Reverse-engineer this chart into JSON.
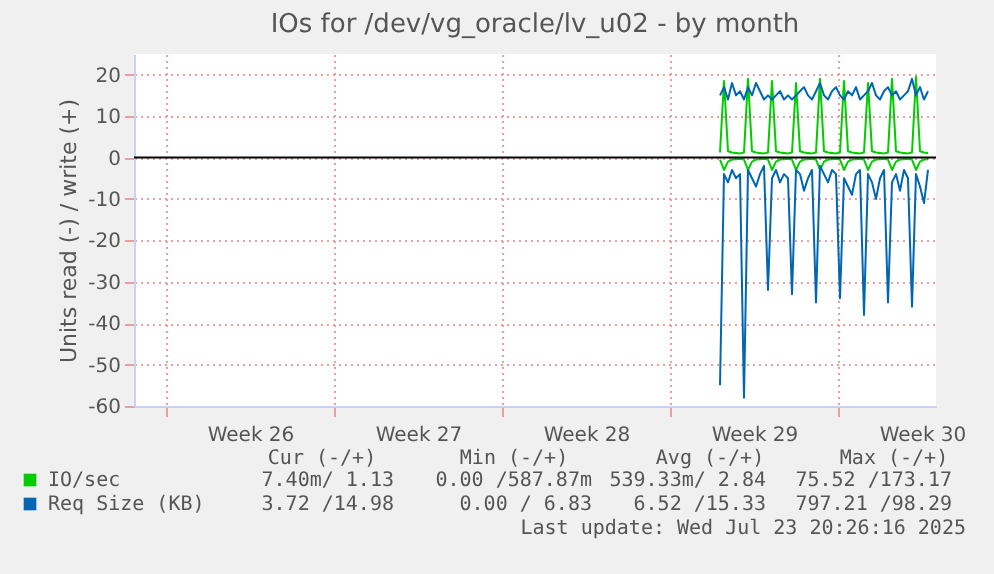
{
  "chart_data": {
    "type": "line",
    "title": "IOs for /dev/vg_oracle/lv_u02 - by month",
    "ylabel": "Units read (-) / write (+)",
    "x": [
      "2025-07-15T00:00",
      "2025-07-15T04:00",
      "2025-07-15T08:00",
      "2025-07-15T12:00",
      "2025-07-15T16:00",
      "2025-07-15T20:00",
      "2025-07-16T00:00",
      "2025-07-16T04:00",
      "2025-07-16T08:00",
      "2025-07-16T12:00",
      "2025-07-16T16:00",
      "2025-07-16T20:00",
      "2025-07-17T00:00",
      "2025-07-17T04:00",
      "2025-07-17T08:00",
      "2025-07-17T12:00",
      "2025-07-17T16:00",
      "2025-07-17T20:00",
      "2025-07-18T00:00",
      "2025-07-18T04:00",
      "2025-07-18T08:00",
      "2025-07-18T12:00",
      "2025-07-18T16:00",
      "2025-07-18T20:00",
      "2025-07-19T00:00",
      "2025-07-19T04:00",
      "2025-07-19T08:00",
      "2025-07-19T12:00",
      "2025-07-19T16:00",
      "2025-07-19T20:00",
      "2025-07-20T00:00",
      "2025-07-20T04:00",
      "2025-07-20T08:00",
      "2025-07-20T12:00",
      "2025-07-20T16:00",
      "2025-07-20T20:00",
      "2025-07-21T00:00",
      "2025-07-21T04:00",
      "2025-07-21T08:00",
      "2025-07-21T12:00",
      "2025-07-21T16:00",
      "2025-07-21T20:00",
      "2025-07-22T00:00",
      "2025-07-22T04:00",
      "2025-07-22T08:00",
      "2025-07-22T12:00",
      "2025-07-22T16:00",
      "2025-07-22T20:00",
      "2025-07-23T00:00",
      "2025-07-23T04:00",
      "2025-07-23T08:00",
      "2025-07-23T12:00",
      "2025-07-23T16:00"
    ],
    "series": [
      {
        "name": "IO/sec",
        "color": "#00cc00",
        "values": [
          1.2,
          18.5,
          1.5,
          1.2,
          1.1,
          1.0,
          1.2,
          19,
          1.5,
          1.2,
          1.1,
          1.0,
          1.2,
          18.5,
          1.5,
          1.2,
          1.1,
          1.0,
          1.2,
          18,
          1.5,
          1.2,
          1.1,
          1.0,
          1.2,
          19,
          1.5,
          1.2,
          1.1,
          1.0,
          1.2,
          18.5,
          1.5,
          1.2,
          1.1,
          1.0,
          1.2,
          18,
          1.5,
          1.2,
          1.1,
          1.0,
          1.2,
          19,
          1.5,
          1.2,
          1.1,
          1.0,
          1.2,
          19.5,
          1.5,
          1.2,
          1.1
        ]
      },
      {
        "color": "#00cc00",
        "values": [
          -0.5,
          -3,
          -1,
          -0.5,
          -0.4,
          -0.3,
          -0.5,
          -3,
          -1,
          -0.5,
          -0.4,
          -0.3,
          -0.5,
          -3,
          -1,
          -0.5,
          -0.4,
          -0.3,
          -0.5,
          -3,
          -1,
          -0.5,
          -0.4,
          -0.3,
          -0.5,
          -3,
          -1,
          -0.5,
          -0.4,
          -0.3,
          -0.5,
          -3,
          -1,
          -0.5,
          -0.4,
          -0.3,
          -0.5,
          -3,
          -1,
          -0.5,
          -0.4,
          -0.3,
          -0.5,
          -3,
          -1,
          -0.5,
          -0.4,
          -0.3,
          -0.5,
          -3,
          -1,
          -0.5,
          -0.4
        ]
      },
      {
        "name": "Req Size (KB)",
        "color": "#0066b3",
        "values": [
          15,
          17,
          14,
          18,
          15,
          16,
          14,
          17,
          15,
          18,
          16,
          14,
          15,
          14,
          15,
          16,
          14,
          15,
          14,
          15,
          16,
          17,
          15,
          14,
          16,
          18,
          15,
          14,
          16,
          17,
          15,
          14,
          16,
          15,
          17,
          14,
          15,
          16,
          18,
          15,
          14,
          16,
          17,
          15,
          16,
          14,
          15,
          16,
          19,
          15,
          17,
          14,
          16
        ]
      },
      {
        "color": "#0066b3",
        "values": [
          -55,
          -4,
          -6,
          -3,
          -5,
          -4,
          -58,
          -3,
          -5,
          -7,
          -4,
          -2,
          -32,
          -5,
          -3,
          -6,
          -4,
          -5,
          -33,
          -3,
          -4,
          -8,
          -5,
          -3,
          -35,
          -2,
          -4,
          -6,
          -3,
          -4,
          -34,
          -5,
          -7,
          -9,
          -4,
          -3,
          -38,
          -4,
          -6,
          -10,
          -5,
          -3,
          -35,
          -6,
          -4,
          -8,
          -3,
          -5,
          -36,
          -4,
          -7,
          -11,
          -3
        ]
      }
    ],
    "xlim": [
      "2025-06-20T14:00",
      "2025-07-24T00:00"
    ],
    "xticks": [
      {
        "value": "2025-06-21T22:00",
        "label": null
      },
      {
        "value": "2025-06-25T10:00",
        "label": "Week 26"
      },
      {
        "value": "2025-06-28T22:00",
        "label": null
      },
      {
        "value": "2025-07-02T10:00",
        "label": "Week 27"
      },
      {
        "value": "2025-07-05T22:00",
        "label": null
      },
      {
        "value": "2025-07-09T10:00",
        "label": "Week 28"
      },
      {
        "value": "2025-07-12T22:00",
        "label": null
      },
      {
        "value": "2025-07-16T10:00",
        "label": "Week 29"
      },
      {
        "value": "2025-07-19T22:00",
        "label": null
      },
      {
        "value": "2025-07-23T10:00",
        "label": "Week 30"
      }
    ],
    "ylim": [
      -60,
      25
    ],
    "yticks": [
      -60,
      -50,
      -40,
      -30,
      -20,
      -10,
      0,
      10,
      20
    ],
    "ref_lines": [
      {
        "axis": "y",
        "value": 0,
        "color": "#000000"
      }
    ],
    "grid": true,
    "legend": "bottom",
    "annotations": [
      "Cur (-/+)",
      "Min (-/+)",
      "Avg (-/+)",
      "Max (-/+)",
      "7.40m/ 1.13",
      "0.00 /587.87m",
      "539.33m/ 2.84",
      "75.52 /173.17",
      "3.72 /14.98",
      "0.00 / 6.83",
      "6.52 /15.33",
      "797.21 /98.29",
      "Last update: Wed Jul 23 20:26:16 2025"
    ]
  }
}
